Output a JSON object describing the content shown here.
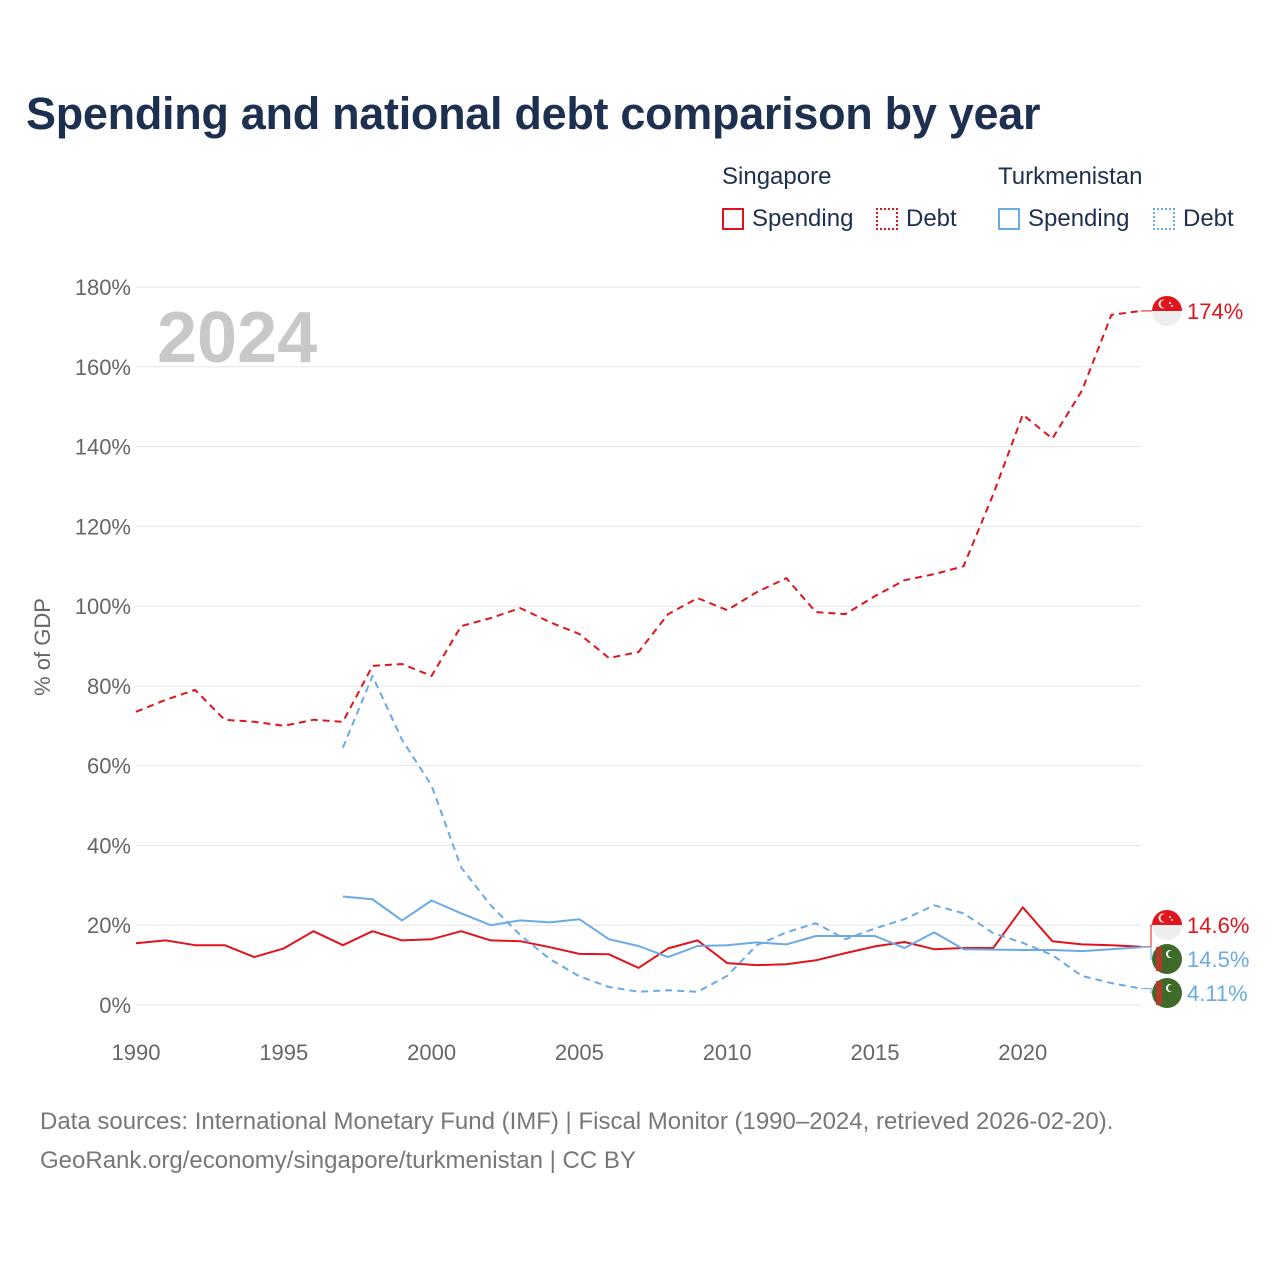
{
  "title": "Spending and national debt comparison by year",
  "legend": {
    "groups": [
      {
        "name": "Singapore",
        "items": [
          {
            "label": "Spending"
          },
          {
            "label": "Debt"
          }
        ]
      },
      {
        "name": "Turkmenistan",
        "items": [
          {
            "label": "Spending"
          },
          {
            "label": "Debt"
          }
        ]
      }
    ]
  },
  "colors": {
    "singapore": "#e0141c",
    "turkmenistan": "#6aaae6",
    "grid": "#e6e6e6",
    "axis_text": "#666666",
    "year_watermark": "#c8c8c8"
  },
  "chart_data": {
    "type": "line",
    "year_label": "2024",
    "ylabel": "% of GDP",
    "xlim": [
      1990,
      2024
    ],
    "ylim": [
      0,
      180
    ],
    "x_ticks": [
      1990,
      1995,
      2000,
      2005,
      2010,
      2015,
      2020
    ],
    "x_tick_labels": [
      "1990",
      "1995",
      "2000",
      "2005",
      "2010",
      "2015",
      "2020"
    ],
    "y_ticks": [
      0,
      20,
      40,
      60,
      80,
      100,
      120,
      140,
      160,
      180
    ],
    "y_tick_labels": [
      "0%",
      "20%",
      "40%",
      "60%",
      "80%",
      "100%",
      "120%",
      "140%",
      "160%",
      "180%"
    ],
    "series": [
      {
        "name": "Singapore Debt",
        "country": "Singapore",
        "metric": "Debt",
        "style": "dashed",
        "color": "#e0141c",
        "x": [
          1990,
          1991,
          1992,
          1993,
          1994,
          1995,
          1996,
          1997,
          1998,
          1999,
          2000,
          2001,
          2002,
          2003,
          2004,
          2005,
          2006,
          2007,
          2008,
          2009,
          2010,
          2011,
          2012,
          2013,
          2014,
          2015,
          2016,
          2017,
          2018,
          2019,
          2020,
          2021,
          2022,
          2023,
          2024
        ],
        "values": [
          73.5,
          76.5,
          79,
          71.5,
          71,
          70,
          71.5,
          71,
          85,
          85.5,
          82.5,
          95,
          97,
          99.5,
          96,
          93,
          87,
          88.5,
          98,
          102,
          99,
          103.5,
          107,
          98.5,
          98,
          102.5,
          106.5,
          108,
          110,
          128,
          148,
          142,
          154,
          173,
          174
        ]
      },
      {
        "name": "Singapore Spending",
        "country": "Singapore",
        "metric": "Spending",
        "style": "solid",
        "color": "#e0141c",
        "x": [
          1990,
          1991,
          1992,
          1993,
          1994,
          1995,
          1996,
          1997,
          1998,
          1999,
          2000,
          2001,
          2002,
          2003,
          2004,
          2005,
          2006,
          2007,
          2008,
          2009,
          2010,
          2011,
          2012,
          2013,
          2014,
          2015,
          2016,
          2017,
          2018,
          2019,
          2020,
          2021,
          2022,
          2023,
          2024
        ],
        "values": [
          15.5,
          16.2,
          15,
          15,
          12,
          14.2,
          18.5,
          15,
          18.5,
          16.2,
          16.5,
          18.5,
          16.2,
          16,
          14.5,
          12.8,
          12.7,
          9.3,
          14.2,
          16.2,
          10.5,
          10,
          10.2,
          11.2,
          13,
          14.7,
          15.8,
          14,
          14.3,
          14.3,
          24.5,
          16,
          15.2,
          15,
          14.6
        ]
      },
      {
        "name": "Turkmenistan Debt",
        "country": "Turkmenistan",
        "metric": "Debt",
        "style": "dashed",
        "color": "#6aaae6",
        "x": [
          1997,
          1998,
          1999,
          2000,
          2001,
          2002,
          2003,
          2004,
          2005,
          2006,
          2007,
          2008,
          2009,
          2010,
          2011,
          2012,
          2013,
          2014,
          2015,
          2016,
          2017,
          2018,
          2019,
          2020,
          2021,
          2022,
          2023,
          2024
        ],
        "values": [
          64.5,
          82.5,
          66.5,
          55,
          34.5,
          25,
          17.5,
          11.5,
          7.2,
          4.5,
          3.3,
          3.7,
          3.3,
          7.3,
          15,
          18.2,
          20.5,
          16.5,
          19.2,
          21.5,
          25,
          23,
          18,
          15.6,
          12.5,
          7.3,
          5.5,
          4.11
        ]
      },
      {
        "name": "Turkmenistan Spending",
        "country": "Turkmenistan",
        "metric": "Spending",
        "style": "solid",
        "color": "#6aaae6",
        "x": [
          1997,
          1998,
          1999,
          2000,
          2001,
          2002,
          2003,
          2004,
          2005,
          2006,
          2007,
          2008,
          2009,
          2010,
          2011,
          2012,
          2013,
          2014,
          2015,
          2016,
          2017,
          2018,
          2019,
          2020,
          2021,
          2022,
          2023,
          2024
        ],
        "values": [
          27.2,
          26.5,
          21.2,
          26.2,
          23,
          20,
          21.2,
          20.7,
          21.5,
          16.5,
          14.8,
          12,
          14.8,
          15,
          15.7,
          15.2,
          17.3,
          17.3,
          17.3,
          14.3,
          18.2,
          14,
          13.9,
          13.8,
          13.8,
          13.5,
          14,
          14.5
        ]
      }
    ],
    "end_labels": [
      {
        "series": "Singapore Debt",
        "text": "174%"
      },
      {
        "series": "Singapore Spending",
        "text": "14.6%"
      },
      {
        "series": "Turkmenistan Spending",
        "text": "14.5%"
      },
      {
        "series": "Turkmenistan Debt",
        "text": "4.11%"
      }
    ]
  },
  "footer": {
    "line1": "Data sources: International Monetary Fund (IMF) | Fiscal Monitor (1990–2024, retrieved 2026-02-20).",
    "line2": "GeoRank.org/economy/singapore/turkmenistan | CC BY"
  }
}
